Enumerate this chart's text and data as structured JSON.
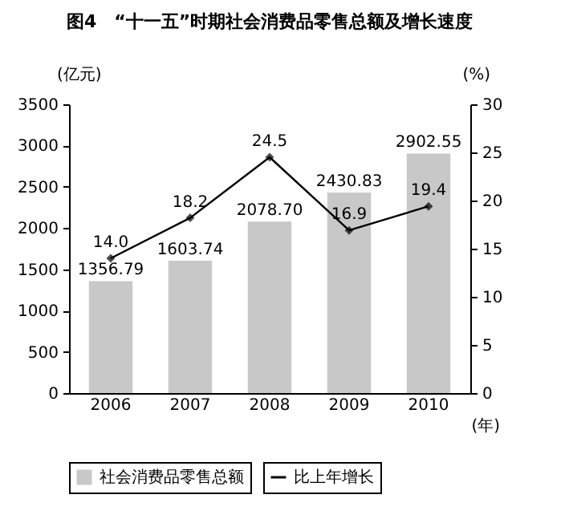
{
  "chart_data": {
    "type": "bar",
    "title": "图4　“十一五”时期社会消费品零售总额及增长速度",
    "ylabel": "(亿元)",
    "y2label": "(%)",
    "xlabel": "(年)",
    "categories": [
      "2006",
      "2007",
      "2008",
      "2009",
      "2010"
    ],
    "series": [
      {
        "name": "社会消费品零售总额",
        "color": "#c8c8c8",
        "values": [
          1356.79,
          1603.74,
          2078.7,
          2430.83,
          2902.55
        ],
        "value_labels": [
          "1356.79",
          "1603.74",
          "2078.70",
          "2430.83",
          "2902.55"
        ]
      },
      {
        "name": "比上年增长",
        "type": "line",
        "axis": "y2",
        "color": "#000000",
        "marker": "diamond",
        "values": [
          14.0,
          18.2,
          24.5,
          16.9,
          19.4
        ],
        "value_labels": [
          "14.0",
          "18.2",
          "24.5",
          "16.9",
          "19.4"
        ]
      }
    ],
    "data_labels": true,
    "ylim": [
      0,
      3500
    ],
    "yticks": [
      0,
      500,
      1000,
      1500,
      2000,
      2500,
      3000,
      3500
    ],
    "y2lim": [
      0,
      30
    ],
    "y2ticks": [
      0,
      5,
      10,
      15,
      20,
      25,
      30
    ],
    "grid": false,
    "legend": "bottom"
  }
}
